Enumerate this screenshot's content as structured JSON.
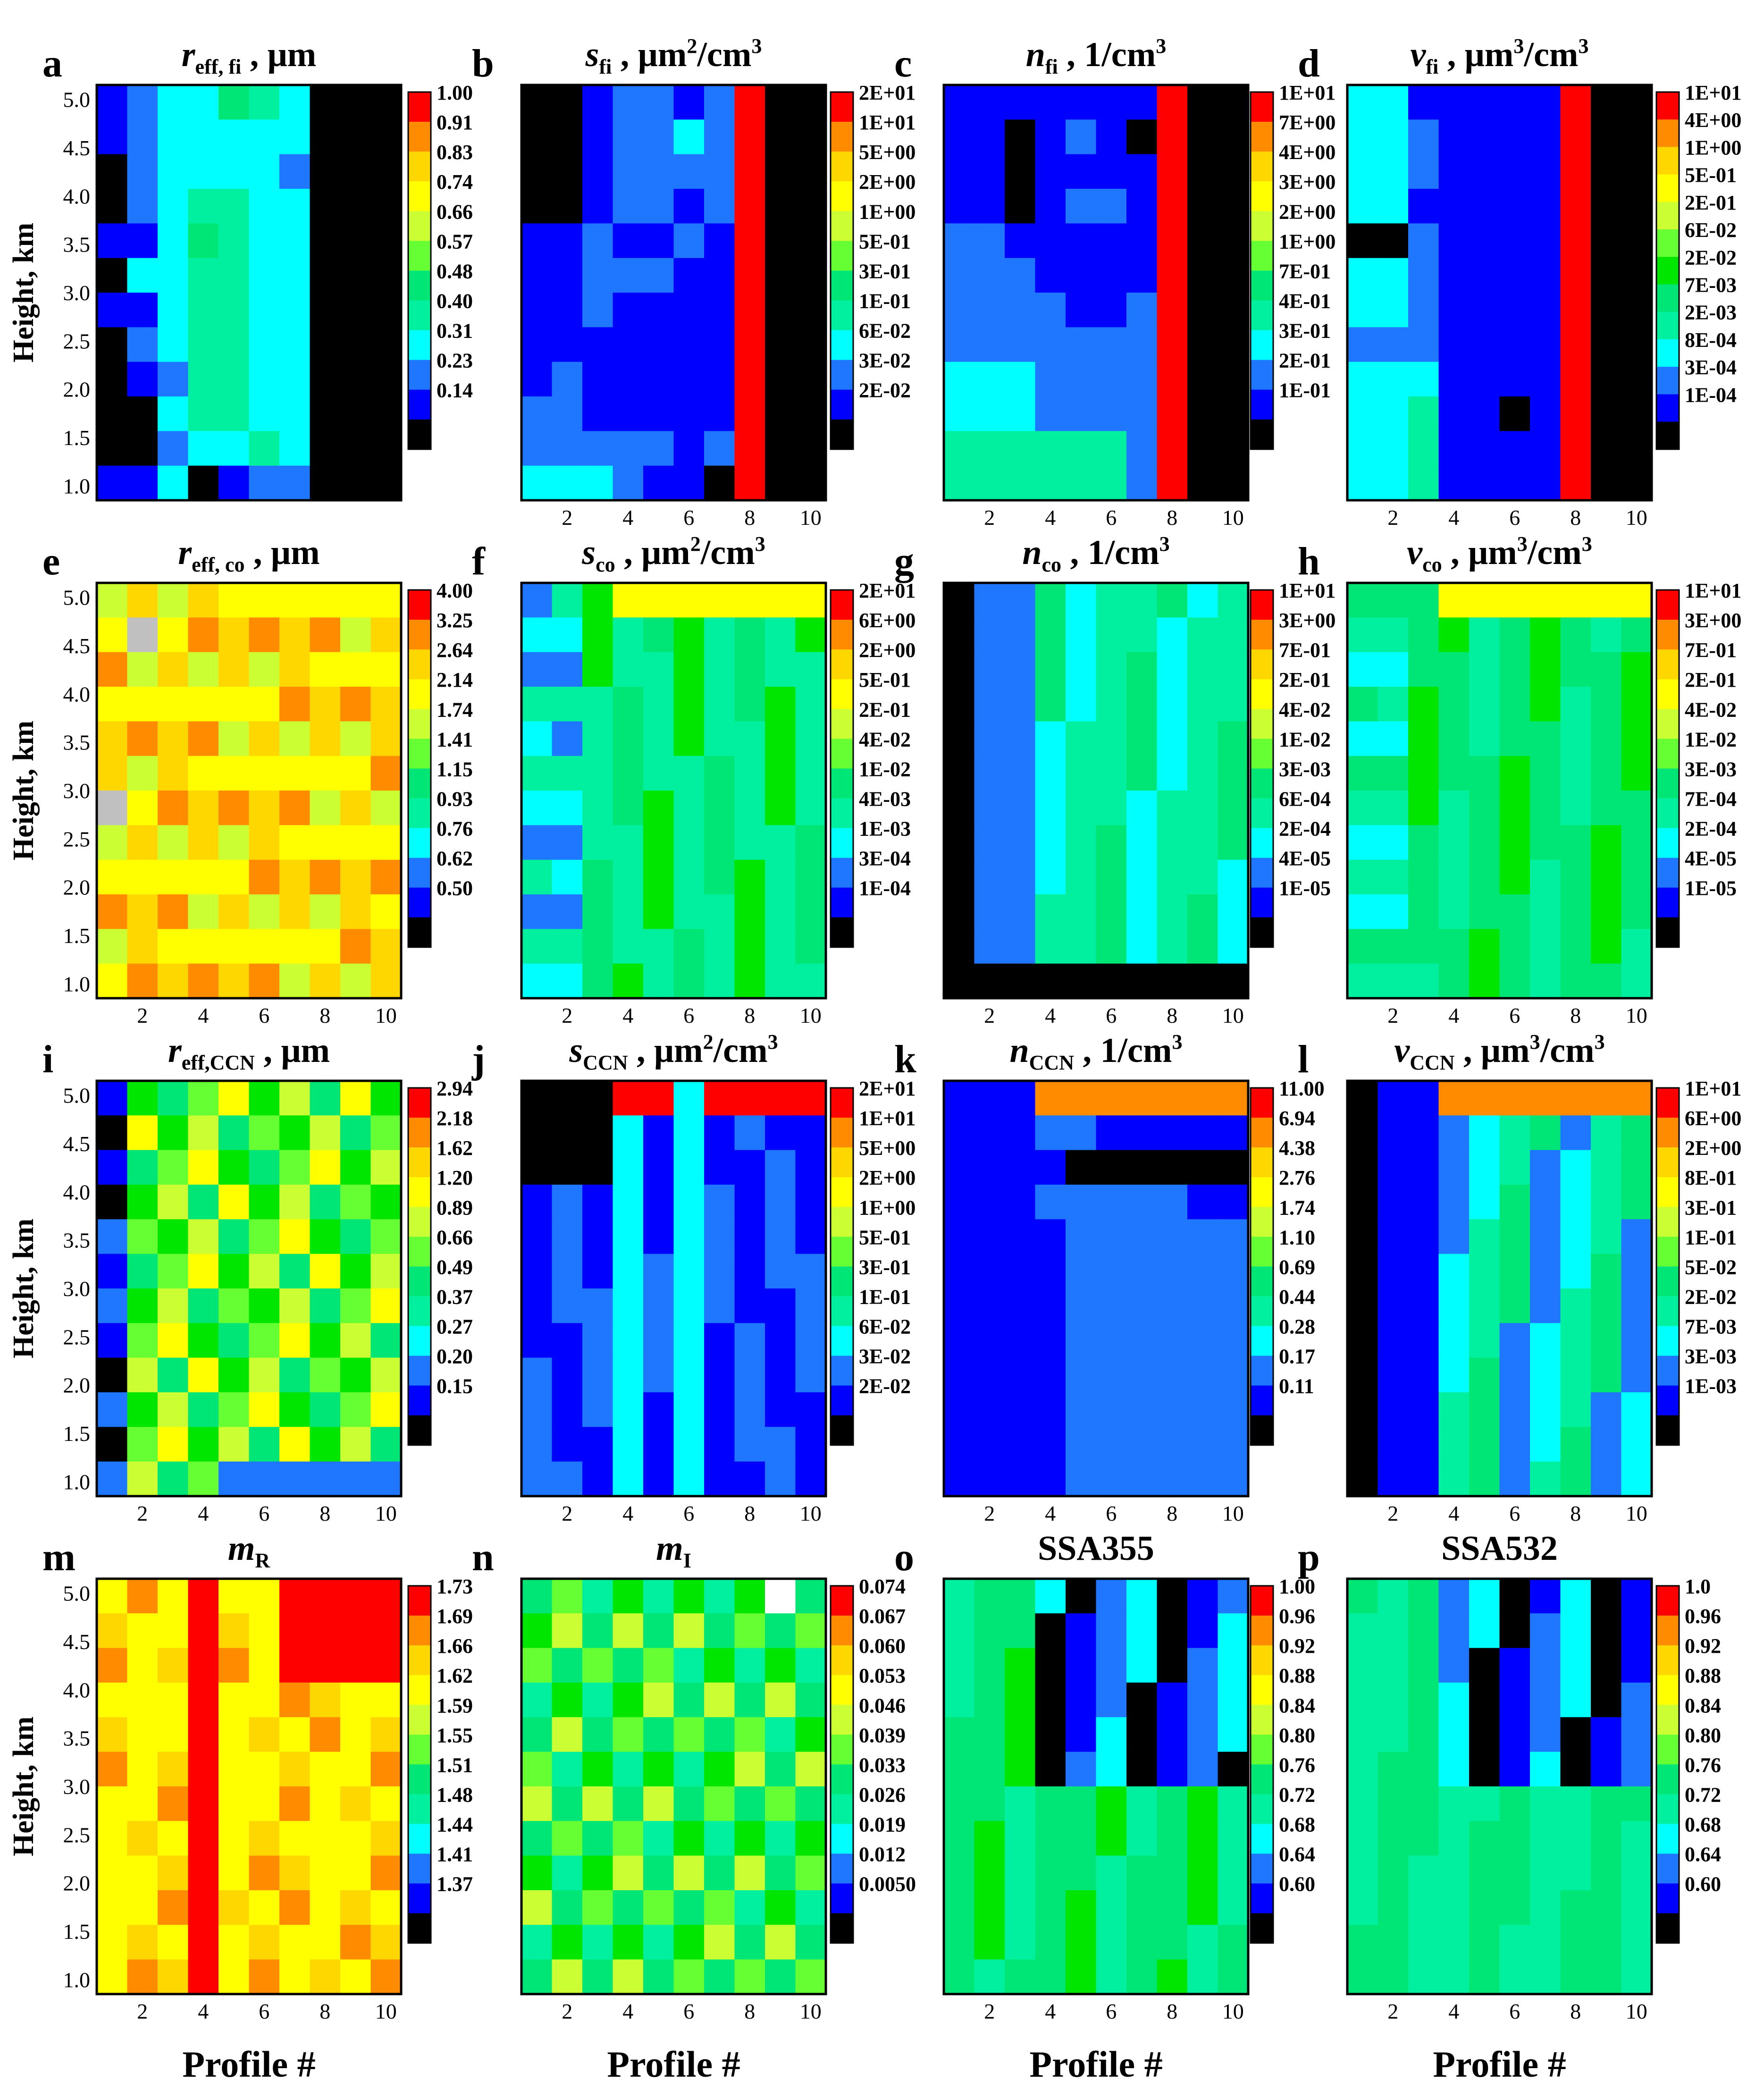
{
  "figure": {
    "y_axis_label": "Height, km",
    "x_axis_label": "Profile #",
    "y_ticks": [
      "1.0",
      "1.5",
      "2.0",
      "2.5",
      "3.0",
      "3.5",
      "4.0",
      "4.5",
      "5.0"
    ],
    "x_ticks": [
      "2",
      "4",
      "6",
      "8",
      "10"
    ]
  },
  "colors": {
    "palette_13": [
      "#000000",
      "#0000ff",
      "#1f77ff",
      "#00ffff",
      "#00f0a0",
      "#00e676",
      "#00e600",
      "#66ff33",
      "#ccff33",
      "#ffff00",
      "#ffd700",
      "#ff8c00",
      "#ff0000"
    ],
    "missing": "#c0c0c0",
    "white": "#ffffff"
  },
  "chart_data": [
    {
      "type": "heatmap",
      "letter": "a",
      "title_main": "r",
      "title_sub": "eff, fi",
      "title_unit": " , μm",
      "title_sup": "",
      "colorbar_ticks": [
        "1.00",
        "0.91",
        "0.83",
        "0.74",
        "0.66",
        "0.57",
        "0.48",
        "0.40",
        "0.31",
        "0.23",
        "0.14"
      ],
      "show_x_ticks": false,
      "grid": [
        "1233543",
        "1233333",
        "0233332",
        "0234433",
        "1135433",
        "0334433",
        "1134433",
        "0234433",
        "0124433",
        "0034433",
        "0023343",
        "1130122"
      ]
    },
    {
      "type": "heatmap",
      "letter": "b",
      "title_main": "s",
      "title_sub": "fi",
      "title_unit": " , μm",
      "title_sup": "2",
      "title_unit2": "/cm",
      "title_sup2": "3",
      "colorbar_ticks": [
        "2E+01",
        "1E+01",
        "5E+00",
        "2E+00",
        "1E+00",
        "5E-01",
        "3E-01",
        "1E-01",
        "6E-02",
        "3E-02",
        "2E-02"
      ],
      "show_x_ticks": true,
      "grid": [
        "0012212c",
        "0012232c",
        "0012222c",
        "0012212c",
        "1121121c",
        "1122211c",
        "1121111c",
        "1111111c",
        "1211111c",
        "2211111c",
        "2222212c",
        "3332110c"
      ]
    },
    {
      "type": "heatmap",
      "letter": "c",
      "title_main": "n",
      "title_sub": "fi",
      "title_unit": " , 1/cm",
      "title_sup": "3",
      "colorbar_ticks": [
        "1E+01",
        "7E+00",
        "4E+00",
        "3E+00",
        "2E+00",
        "1E+00",
        "7E-01",
        "4E-01",
        "3E-01",
        "2E-01",
        "1E-01"
      ],
      "show_x_ticks": true,
      "grid": [
        "1111111c",
        "1101210c",
        "1101111c",
        "1101221c",
        "2211111c",
        "2221111c",
        "2222112c",
        "2222222c",
        "3332222c",
        "3332222c",
        "4444442c",
        "4444442c"
      ]
    },
    {
      "type": "heatmap",
      "letter": "d",
      "title_main": "v",
      "title_sub": "fi",
      "title_unit": " ,  μm",
      "title_sup": "3",
      "title_unit2": "/cm",
      "title_sup2": "3",
      "colorbar_ticks": [
        "1E+01",
        "4E+00",
        "1E+00",
        "5E-01",
        "2E-01",
        "6E-02",
        "2E-02",
        "7E-03",
        "2E-03",
        "8E-04",
        "3E-04",
        "1E-04"
      ],
      "show_x_ticks": true,
      "grid": [
        "3311111c",
        "3321111c",
        "3321111c",
        "3311111c",
        "0021111c",
        "3321111c",
        "3321111c",
        "2221111c",
        "3331111c",
        "3341101c",
        "3341111c",
        "3341111c"
      ]
    }
  ]
}
